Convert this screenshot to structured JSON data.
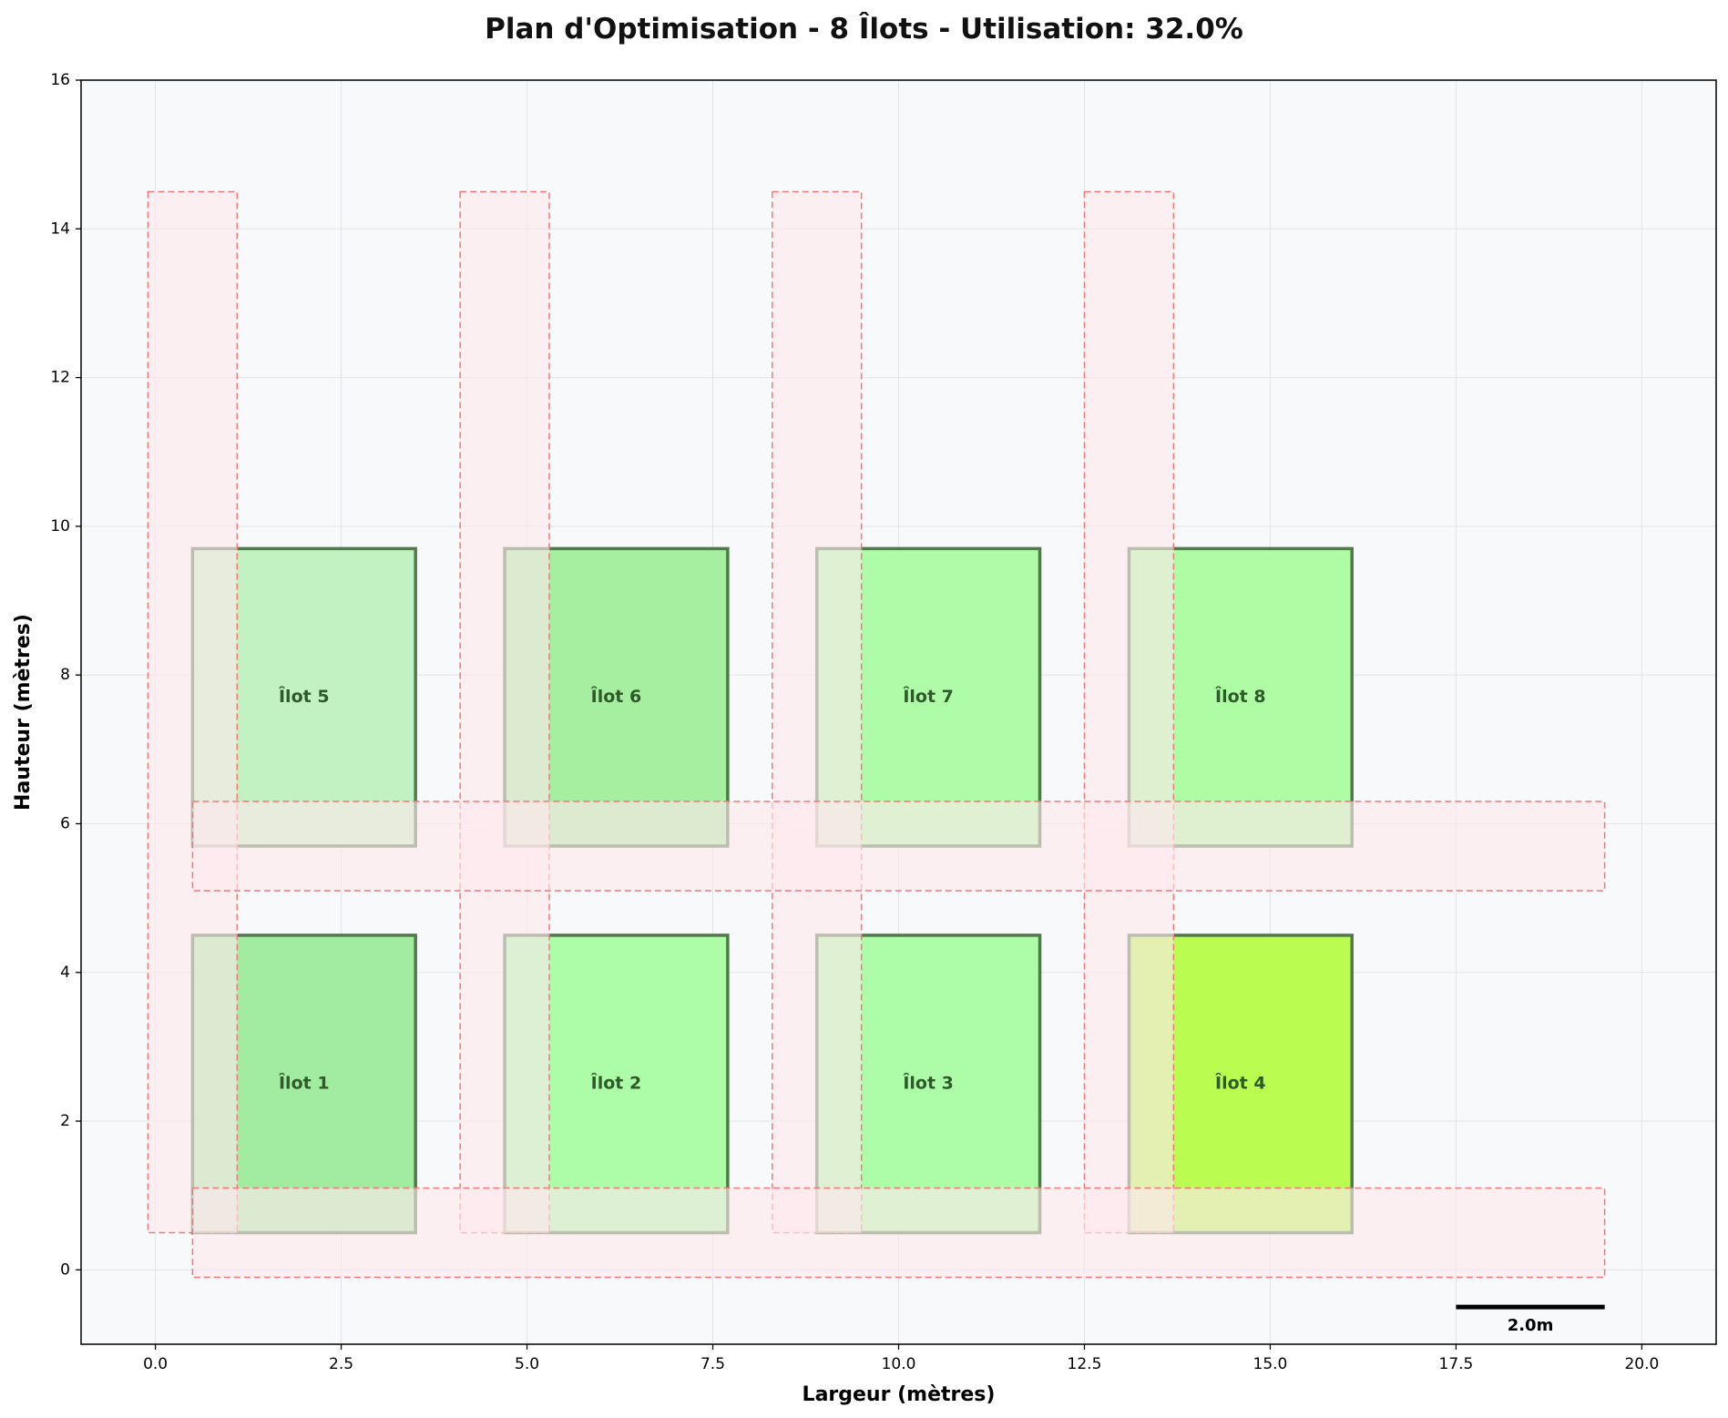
{
  "chart_data": {
    "type": "layout-plan",
    "title": "Plan d'Optimisation - 8 Îlots - Utilisation: 32.0%",
    "xlabel": "Largeur (mètres)",
    "ylabel": "Hauteur (mètres)",
    "xlim": [
      -1.0,
      21.0
    ],
    "ylim": [
      -1.0,
      16.0
    ],
    "xticks": [
      0.0,
      2.5,
      5.0,
      7.5,
      10.0,
      12.5,
      15.0,
      17.5,
      20.0
    ],
    "xtick_labels": [
      "0.0",
      "2.5",
      "5.0",
      "7.5",
      "10.0",
      "12.5",
      "15.0",
      "17.5",
      "20.0"
    ],
    "yticks": [
      0,
      2,
      4,
      6,
      8,
      10,
      12,
      14,
      16
    ],
    "ytick_labels": [
      "0",
      "2",
      "4",
      "6",
      "8",
      "10",
      "12",
      "14",
      "16"
    ],
    "grid": true,
    "ilots": [
      {
        "label": "Îlot 1",
        "x": 0.5,
        "y": 0.5,
        "width": 3.0,
        "height": 4.0,
        "color": "#a2eca2"
      },
      {
        "label": "Îlot 2",
        "x": 4.7,
        "y": 0.5,
        "width": 3.0,
        "height": 4.0,
        "color": "#acfca8"
      },
      {
        "label": "Îlot 3",
        "x": 8.9,
        "y": 0.5,
        "width": 3.0,
        "height": 4.0,
        "color": "#adfda8"
      },
      {
        "label": "Îlot 4",
        "x": 13.1,
        "y": 0.5,
        "width": 3.0,
        "height": 4.0,
        "color": "#bafd50"
      },
      {
        "label": "Îlot 5",
        "x": 0.5,
        "y": 5.7,
        "width": 3.0,
        "height": 4.0,
        "color": "#c2f1c2"
      },
      {
        "label": "Îlot 6",
        "x": 4.7,
        "y": 5.7,
        "width": 3.0,
        "height": 4.0,
        "color": "#a6efa1"
      },
      {
        "label": "Îlot 7",
        "x": 8.9,
        "y": 5.7,
        "width": 3.0,
        "height": 4.0,
        "color": "#aefca8"
      },
      {
        "label": "Îlot 8",
        "x": 13.1,
        "y": 5.7,
        "width": 3.0,
        "height": 4.0,
        "color": "#aefda4"
      }
    ],
    "corridors": [
      {
        "x": -0.1,
        "y": 0.5,
        "width": 1.2,
        "height": 14.0
      },
      {
        "x": 4.1,
        "y": 0.5,
        "width": 1.2,
        "height": 14.0
      },
      {
        "x": 8.3,
        "y": 0.5,
        "width": 1.2,
        "height": 14.0
      },
      {
        "x": 12.5,
        "y": 0.5,
        "width": 1.2,
        "height": 14.0
      },
      {
        "x": 0.5,
        "y": -0.1,
        "width": 19.0,
        "height": 1.2
      },
      {
        "x": 0.5,
        "y": 5.1,
        "width": 19.0,
        "height": 1.2
      }
    ],
    "scale_bar": {
      "x_start": 17.5,
      "x_end": 19.5,
      "y": -0.5,
      "label": "2.0m"
    },
    "colors": {
      "plot_background": "#f8f9fa",
      "ilot_border": "#4f7a4a",
      "corridor_fill": "#fde8ee",
      "corridor_border": "#ef7a7a"
    }
  }
}
